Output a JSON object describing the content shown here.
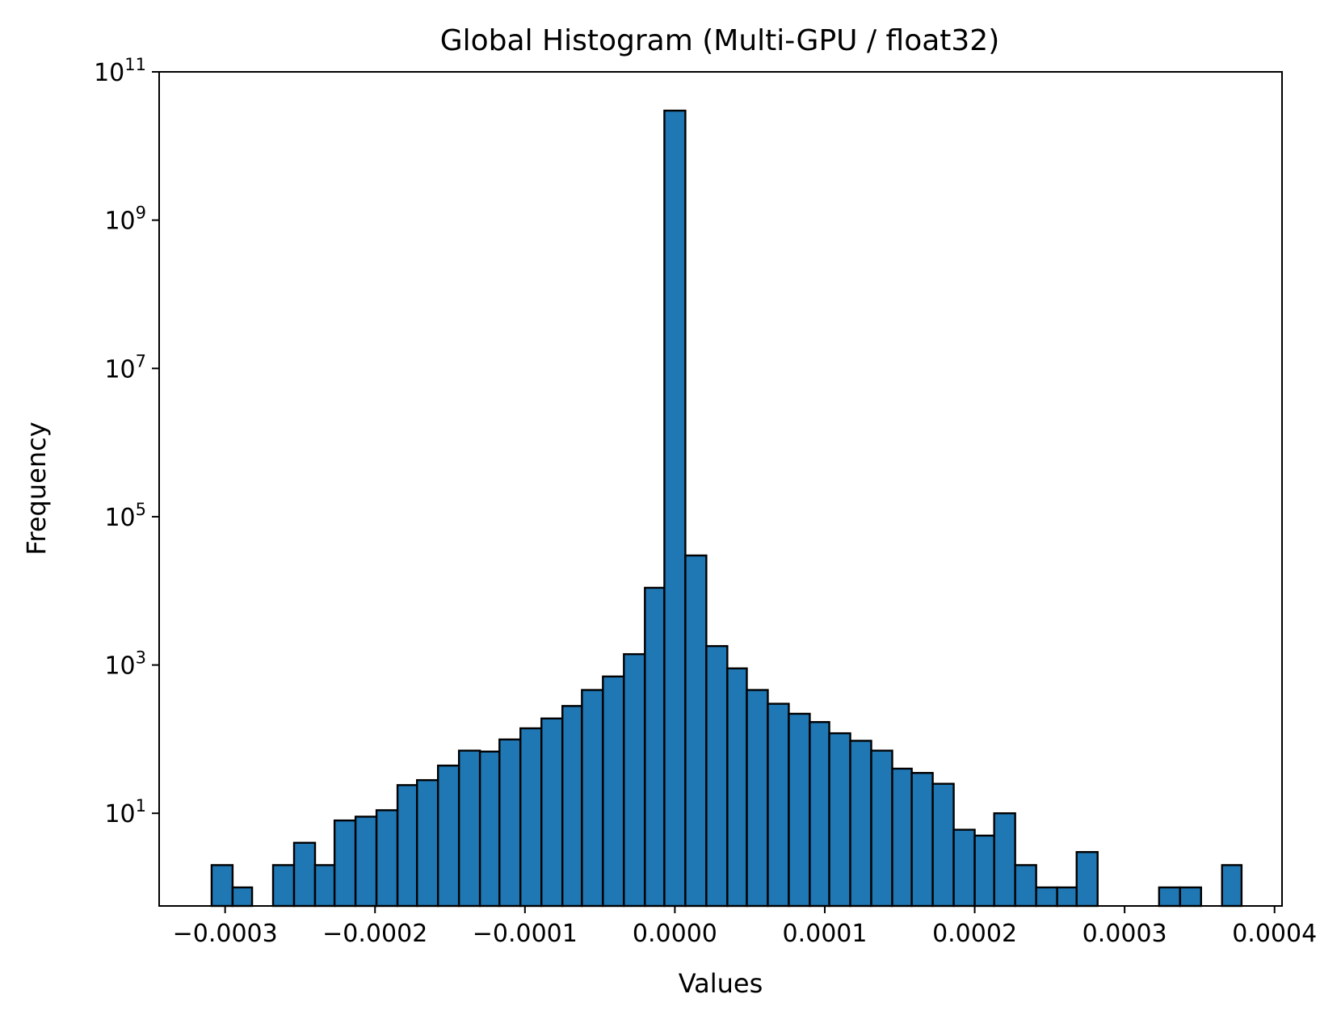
{
  "chart_data": {
    "type": "bar",
    "title": "Global Histogram (Multi-GPU / float32)",
    "xlabel": "Values",
    "ylabel": "Frequency",
    "yscale": "log",
    "xlim": [
      -0.000344,
      0.000405
    ],
    "ylim_log10": [
      -0.25,
      11
    ],
    "bar_color": "#1f77b4",
    "edge_color": "#000000",
    "grid": false,
    "legend": false,
    "bins": [
      {
        "x0": -0.000309,
        "x1": -0.000295,
        "count": 2
      },
      {
        "x0": -0.000295,
        "x1": -0.000282,
        "count": 1
      },
      {
        "x0": -0.000282,
        "x1": -0.000268,
        "count": 0
      },
      {
        "x0": -0.000268,
        "x1": -0.000254,
        "count": 2
      },
      {
        "x0": -0.000254,
        "x1": -0.00024,
        "count": 4
      },
      {
        "x0": -0.00024,
        "x1": -0.000227,
        "count": 2
      },
      {
        "x0": -0.000227,
        "x1": -0.000213,
        "count": 8
      },
      {
        "x0": -0.000213,
        "x1": -0.000199,
        "count": 9
      },
      {
        "x0": -0.000199,
        "x1": -0.000185,
        "count": 11
      },
      {
        "x0": -0.000185,
        "x1": -0.000172,
        "count": 24
      },
      {
        "x0": -0.000172,
        "x1": -0.000158,
        "count": 28
      },
      {
        "x0": -0.000158,
        "x1": -0.000144,
        "count": 44
      },
      {
        "x0": -0.000144,
        "x1": -0.00013,
        "count": 70
      },
      {
        "x0": -0.00013,
        "x1": -0.000117,
        "count": 68
      },
      {
        "x0": -0.000117,
        "x1": -0.000103,
        "count": 99
      },
      {
        "x0": -0.000103,
        "x1": -8.9e-05,
        "count": 140
      },
      {
        "x0": -8.9e-05,
        "x1": -7.5e-05,
        "count": 190
      },
      {
        "x0": -7.5e-05,
        "x1": -6.2e-05,
        "count": 280
      },
      {
        "x0": -6.2e-05,
        "x1": -4.8e-05,
        "count": 460
      },
      {
        "x0": -4.8e-05,
        "x1": -3.4e-05,
        "count": 700
      },
      {
        "x0": -3.4e-05,
        "x1": -2e-05,
        "count": 1400
      },
      {
        "x0": -2e-05,
        "x1": -7e-06,
        "count": 11000
      },
      {
        "x0": -7e-06,
        "x1": 7e-06,
        "count": 30000000000
      },
      {
        "x0": 7e-06,
        "x1": 2.1e-05,
        "count": 30000
      },
      {
        "x0": 2.1e-05,
        "x1": 3.5e-05,
        "count": 1800
      },
      {
        "x0": 3.5e-05,
        "x1": 4.8e-05,
        "count": 900
      },
      {
        "x0": 4.8e-05,
        "x1": 6.2e-05,
        "count": 460
      },
      {
        "x0": 6.2e-05,
        "x1": 7.6e-05,
        "count": 300
      },
      {
        "x0": 7.6e-05,
        "x1": 9e-05,
        "count": 220
      },
      {
        "x0": 9e-05,
        "x1": 0.000103,
        "count": 170
      },
      {
        "x0": 0.000103,
        "x1": 0.000117,
        "count": 120
      },
      {
        "x0": 0.000117,
        "x1": 0.000131,
        "count": 95
      },
      {
        "x0": 0.000131,
        "x1": 0.000145,
        "count": 70
      },
      {
        "x0": 0.000145,
        "x1": 0.000158,
        "count": 40
      },
      {
        "x0": 0.000158,
        "x1": 0.000172,
        "count": 35
      },
      {
        "x0": 0.000172,
        "x1": 0.000186,
        "count": 25
      },
      {
        "x0": 0.000186,
        "x1": 0.0002,
        "count": 6
      },
      {
        "x0": 0.0002,
        "x1": 0.000213,
        "count": 5
      },
      {
        "x0": 0.000213,
        "x1": 0.000227,
        "count": 10
      },
      {
        "x0": 0.000227,
        "x1": 0.000241,
        "count": 2
      },
      {
        "x0": 0.000241,
        "x1": 0.000255,
        "count": 1
      },
      {
        "x0": 0.000255,
        "x1": 0.000268,
        "count": 1
      },
      {
        "x0": 0.000268,
        "x1": 0.000282,
        "count": 3
      },
      {
        "x0": 0.000282,
        "x1": 0.000296,
        "count": 0
      },
      {
        "x0": 0.000296,
        "x1": 0.00031,
        "count": 0
      },
      {
        "x0": 0.00031,
        "x1": 0.000323,
        "count": 0
      },
      {
        "x0": 0.000323,
        "x1": 0.000337,
        "count": 1
      },
      {
        "x0": 0.000337,
        "x1": 0.000351,
        "count": 1
      },
      {
        "x0": 0.000351,
        "x1": 0.000365,
        "count": 0
      },
      {
        "x0": 0.000365,
        "x1": 0.000378,
        "count": 2
      }
    ],
    "x_ticks": [
      {
        "value": -0.0003,
        "label": "−0.0003"
      },
      {
        "value": -0.0002,
        "label": "−0.0002"
      },
      {
        "value": -0.0001,
        "label": "−0.0001"
      },
      {
        "value": 0.0,
        "label": "0.0000"
      },
      {
        "value": 0.0001,
        "label": "0.0001"
      },
      {
        "value": 0.0002,
        "label": "0.0002"
      },
      {
        "value": 0.0003,
        "label": "0.0003"
      },
      {
        "value": 0.0004,
        "label": "0.0004"
      }
    ],
    "y_ticks": [
      {
        "exponent": 1,
        "base": "10",
        "sup": "1"
      },
      {
        "exponent": 3,
        "base": "10",
        "sup": "3"
      },
      {
        "exponent": 5,
        "base": "10",
        "sup": "5"
      },
      {
        "exponent": 7,
        "base": "10",
        "sup": "7"
      },
      {
        "exponent": 9,
        "base": "10",
        "sup": "9"
      },
      {
        "exponent": 11,
        "base": "10",
        "sup": "11"
      }
    ]
  }
}
